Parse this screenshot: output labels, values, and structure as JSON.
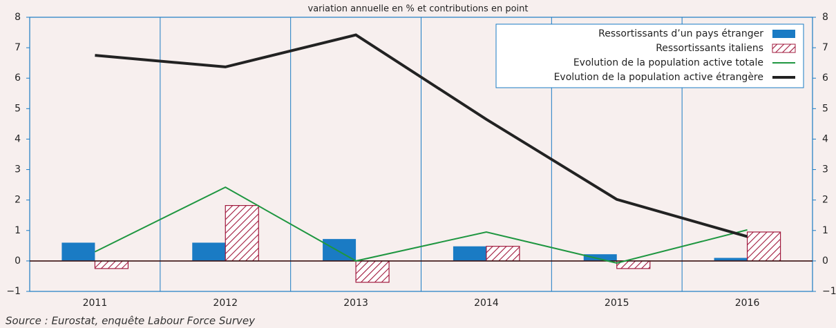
{
  "chart_data": {
    "type": "bar_line",
    "subtitle": "variation annuelle en % et contributions en point",
    "source": "Source : Eurostat, enquête Labour Force Survey",
    "categories": [
      "2011",
      "2012",
      "2013",
      "2014",
      "2015",
      "2016"
    ],
    "series": [
      {
        "name": "Ressortissants d’un pays étranger",
        "kind": "bar",
        "color": "#1a7bc4",
        "values": [
          0.6,
          0.6,
          0.72,
          0.48,
          0.22,
          0.1
        ]
      },
      {
        "name": "Ressortissants italiens",
        "kind": "hatched-bar",
        "color": "#a0183c",
        "values": [
          -0.25,
          1.82,
          -0.7,
          0.48,
          -0.25,
          0.95
        ]
      },
      {
        "name": "Evolution de la population active totale",
        "kind": "line",
        "color": "#1e9640",
        "values": [
          0.3,
          2.42,
          0.0,
          0.95,
          -0.07,
          1.02
        ]
      },
      {
        "name": "Evolution de la population active étrangère",
        "kind": "line",
        "color": "#222222",
        "values": [
          6.75,
          6.37,
          7.42,
          4.65,
          2.02,
          0.8
        ]
      }
    ],
    "ylim": [
      -1,
      8
    ],
    "yticks": [
      {
        "value": -1,
        "label": "−1"
      },
      0,
      1,
      2,
      3,
      4,
      5,
      6,
      7,
      8
    ],
    "legend": "top-right"
  }
}
